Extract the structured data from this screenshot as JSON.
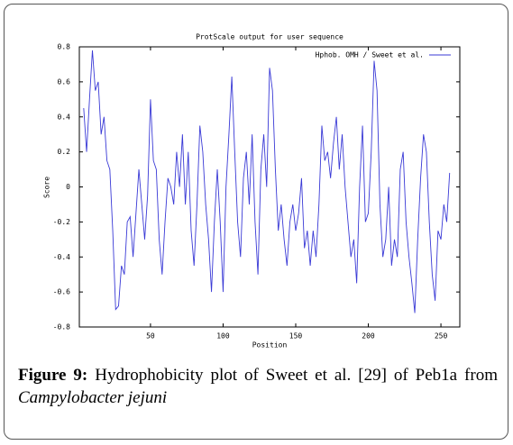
{
  "chart_data": {
    "type": "line",
    "title": "ProtScale output for user sequence",
    "x_label": "Position",
    "y_label": "Score",
    "x": [
      4,
      6,
      8,
      10,
      12,
      14,
      16,
      18,
      20,
      22,
      24,
      26,
      28,
      30,
      32,
      34,
      36,
      38,
      40,
      42,
      44,
      46,
      48,
      50,
      52,
      54,
      56,
      58,
      60,
      62,
      64,
      66,
      68,
      70,
      72,
      74,
      76,
      78,
      80,
      82,
      84,
      86,
      88,
      90,
      92,
      94,
      96,
      98,
      100,
      102,
      104,
      106,
      108,
      110,
      112,
      114,
      116,
      118,
      120,
      122,
      124,
      126,
      128,
      130,
      132,
      134,
      136,
      138,
      140,
      142,
      144,
      146,
      148,
      150,
      152,
      154,
      156,
      158,
      160,
      162,
      164,
      166,
      168,
      170,
      172,
      174,
      176,
      178,
      180,
      182,
      184,
      186,
      188,
      190,
      192,
      194,
      196,
      198,
      200,
      202,
      204,
      206,
      208,
      210,
      212,
      214,
      216,
      218,
      220,
      222,
      224,
      226,
      228,
      230,
      232,
      234,
      236,
      238,
      240,
      242,
      244,
      246,
      248,
      250,
      252,
      254,
      256
    ],
    "series": [
      {
        "name": "Hphob. OMH / Sweet et al.",
        "color": "#3a3ad6",
        "values": [
          0.45,
          0.2,
          0.5,
          0.78,
          0.55,
          0.6,
          0.3,
          0.4,
          0.15,
          0.1,
          -0.25,
          -0.7,
          -0.68,
          -0.45,
          -0.5,
          -0.2,
          -0.17,
          -0.4,
          -0.15,
          0.1,
          -0.1,
          -0.3,
          -0.05,
          0.5,
          0.15,
          0.1,
          -0.3,
          -0.5,
          -0.2,
          0.05,
          0,
          -0.1,
          0.2,
          0,
          0.3,
          -0.1,
          0.2,
          -0.25,
          -0.45,
          -0.1,
          0.35,
          0.2,
          -0.1,
          -0.3,
          -0.6,
          -0.2,
          0.1,
          -0.2,
          -0.6,
          0,
          0.3,
          0.63,
          0.2,
          -0.2,
          -0.4,
          0.05,
          0.2,
          -0.1,
          0.3,
          -0.2,
          -0.5,
          0.1,
          0.3,
          0,
          0.68,
          0.55,
          0.1,
          -0.25,
          -0.1,
          -0.3,
          -0.45,
          -0.2,
          -0.1,
          -0.25,
          -0.15,
          0.05,
          -0.35,
          -0.25,
          -0.45,
          -0.25,
          -0.4,
          -0.1,
          0.35,
          0.15,
          0.2,
          0.05,
          0.25,
          0.4,
          0.1,
          0.3,
          0,
          -0.2,
          -0.4,
          -0.3,
          -0.55,
          0,
          0.35,
          -0.2,
          -0.15,
          0.2,
          0.72,
          0.55,
          -0.1,
          -0.4,
          -0.3,
          0,
          -0.45,
          -0.3,
          -0.4,
          0.1,
          0.2,
          -0.2,
          -0.4,
          -0.55,
          -0.72,
          -0.3,
          0.05,
          0.3,
          0.2,
          -0.2,
          -0.5,
          -0.65,
          -0.25,
          -0.3,
          -0.1,
          -0.2,
          0.08
        ]
      }
    ],
    "xlim": [
      1,
      263
    ],
    "ylim": [
      -0.8,
      0.8
    ],
    "xticks": [
      50,
      100,
      150,
      200,
      250
    ],
    "yticks": [
      -0.8,
      -0.6,
      -0.4,
      -0.2,
      0,
      0.2,
      0.4,
      0.6,
      0.8
    ],
    "legend": "top-right"
  },
  "caption": {
    "label": "Figure 9:",
    "text": " Hydrophobicity plot of Sweet et al. [29] of Peb1a from",
    "species": "Campylobacter jejuni"
  }
}
